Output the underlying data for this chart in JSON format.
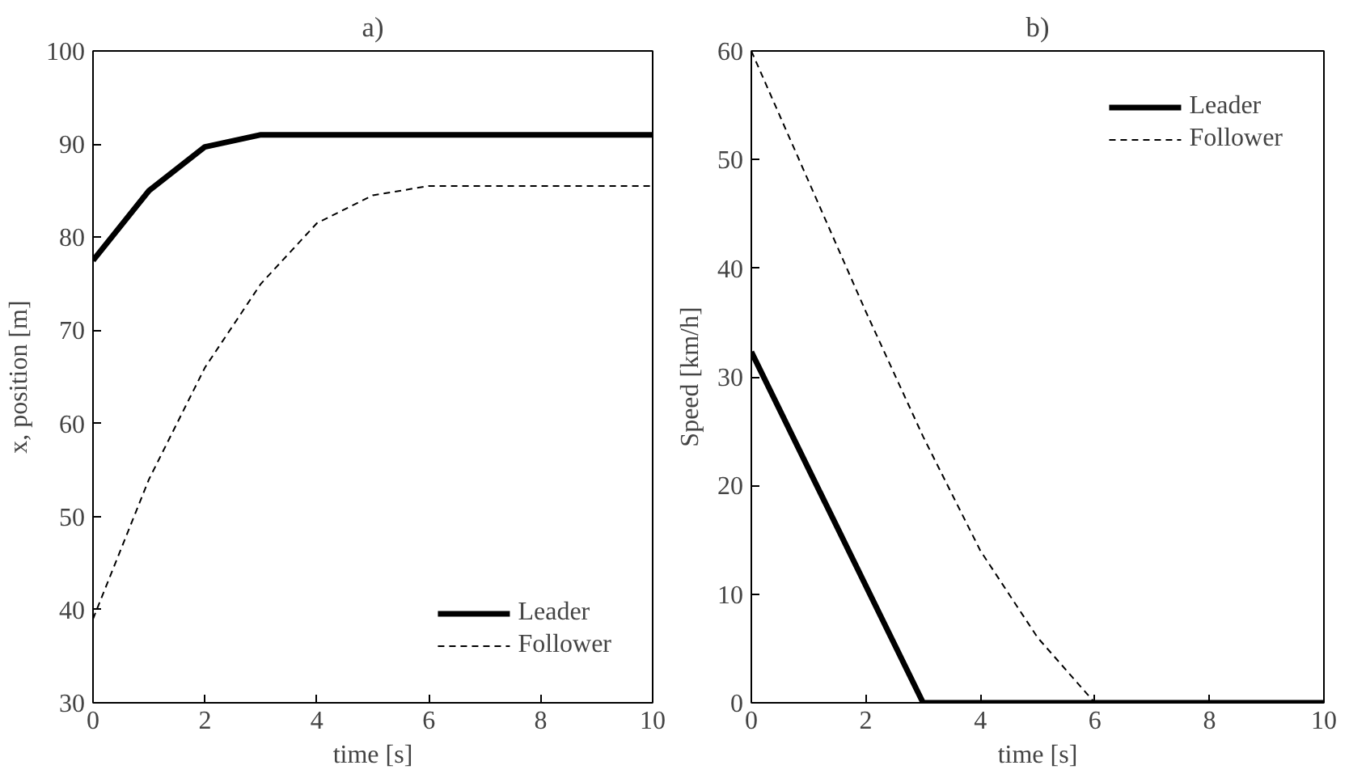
{
  "chart_data": [
    {
      "type": "line",
      "title": "a)",
      "xlabel": "time [s]",
      "ylabel": "x, position [m]",
      "xlim": [
        0,
        10
      ],
      "ylim": [
        30,
        100
      ],
      "xticks": [
        0,
        2,
        4,
        6,
        8,
        10
      ],
      "yticks": [
        30,
        40,
        50,
        60,
        70,
        80,
        90,
        100
      ],
      "grid": false,
      "legend": "bottom right",
      "series": [
        {
          "name": "Leader",
          "color": "#000000",
          "line_style": "solid",
          "x": [
            0,
            1,
            2,
            3,
            10
          ],
          "values": [
            77.5,
            85,
            89.7,
            91,
            91
          ]
        },
        {
          "name": "Follower",
          "color": "#000000",
          "line_style": "dashed",
          "x": [
            0,
            1,
            2,
            3,
            4,
            5,
            6,
            10
          ],
          "values": [
            39,
            54,
            66,
            75,
            81.5,
            84.5,
            85.5,
            85.5
          ]
        }
      ]
    },
    {
      "type": "line",
      "title": "b)",
      "xlabel": "time [s]",
      "ylabel": "Speed [km/h]",
      "xlim": [
        0,
        10
      ],
      "ylim": [
        0,
        60
      ],
      "xticks": [
        0,
        2,
        4,
        6,
        8,
        10
      ],
      "yticks": [
        0,
        10,
        20,
        30,
        40,
        50,
        60
      ],
      "grid": false,
      "legend": "top right",
      "series": [
        {
          "name": "Leader",
          "color": "#000000",
          "line_style": "solid",
          "x": [
            0,
            3,
            10
          ],
          "values": [
            32.3,
            0,
            0
          ]
        },
        {
          "name": "Follower",
          "color": "#000000",
          "line_style": "dashed",
          "x": [
            0,
            1,
            2,
            3,
            4,
            5,
            6,
            10
          ],
          "values": [
            60,
            48,
            36,
            24.5,
            14,
            6,
            0,
            0
          ]
        }
      ]
    }
  ]
}
